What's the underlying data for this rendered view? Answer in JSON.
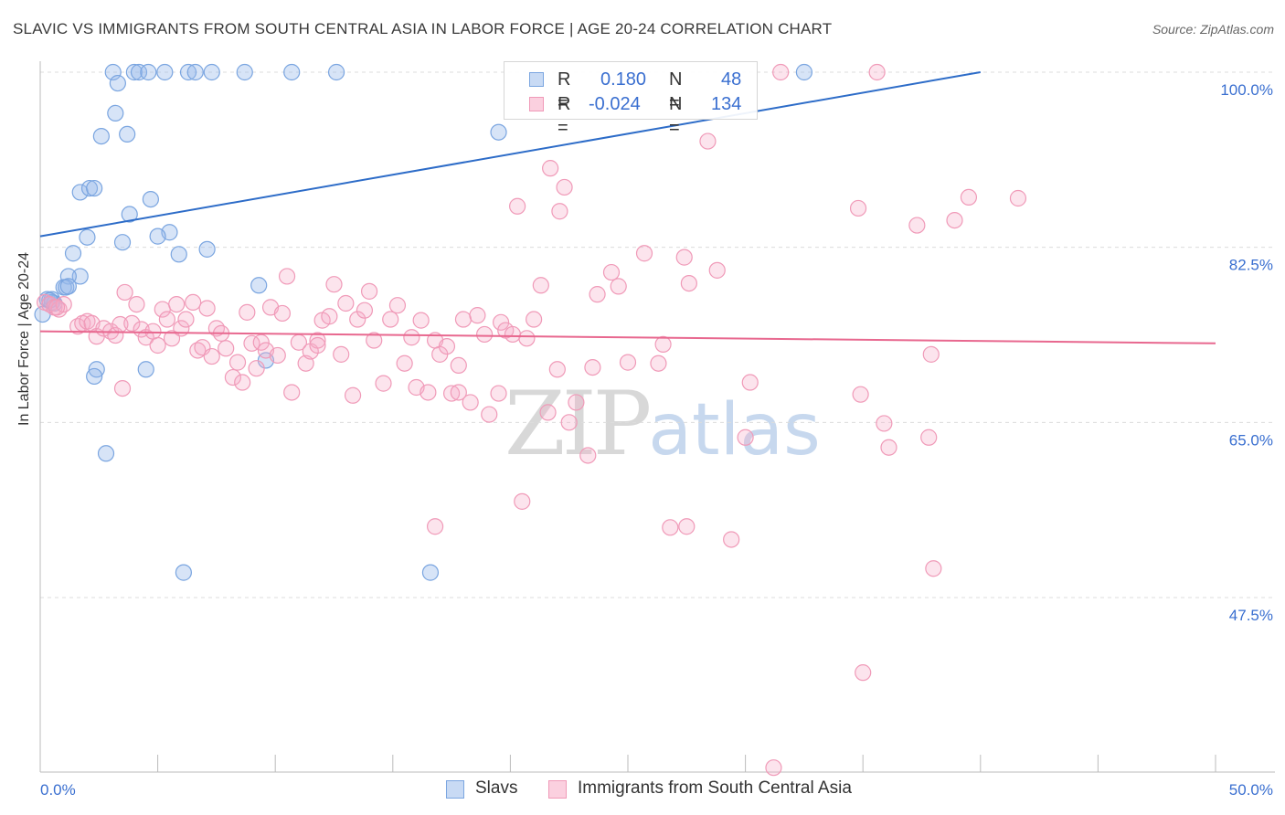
{
  "title": "SLAVIC VS IMMIGRANTS FROM SOUTH CENTRAL ASIA IN LABOR FORCE | AGE 20-24 CORRELATION CHART",
  "source": "Source: ZipAtlas.com",
  "watermark": {
    "zip": "ZIP",
    "atlas": "atlas"
  },
  "legend_top": {
    "rows": [
      {
        "r_label": "R =",
        "r_value": "0.180",
        "n_label": "N =",
        "n_value": "48"
      },
      {
        "r_label": "R =",
        "r_value": "-0.024",
        "n_label": "N =",
        "n_value": "134"
      }
    ]
  },
  "legend_bottom": [
    "Slavs",
    "Immigrants from South Central Asia"
  ],
  "chart_data": {
    "type": "scatter",
    "title": "SLAVIC VS IMMIGRANTS FROM SOUTH CENTRAL ASIA IN LABOR FORCE | AGE 20-24 CORRELATION CHART",
    "xlabel": "",
    "ylabel": "In Labor Force | Age 20-24",
    "xlim": [
      0,
      50
    ],
    "ylim": [
      29,
      101.5
    ],
    "x_tick_labels": [
      {
        "value": 0,
        "label": "0.0%"
      },
      {
        "value": 50,
        "label": "50.0%"
      }
    ],
    "y_tick_labels": [
      {
        "value": 100,
        "label": "100.0%"
      },
      {
        "value": 82.5,
        "label": "82.5%"
      },
      {
        "value": 65,
        "label": "65.0%"
      },
      {
        "value": 47.5,
        "label": "47.5%"
      }
    ],
    "grid": true,
    "colors": {
      "slavs": "#7aa5e0",
      "immigrants": "#f09ab8",
      "slavs_line": "#2d6cc8",
      "immigrants_line": "#e8688f",
      "tick_label": "#3a6fd0"
    },
    "series": [
      {
        "name": "Slavs",
        "trend": {
          "x0": 0,
          "y0": 83.6,
          "x1": 40.0,
          "y1": 100.0
        },
        "points": [
          [
            3.1,
            100
          ],
          [
            4.0,
            100
          ],
          [
            4.2,
            100
          ],
          [
            4.6,
            100
          ],
          [
            5.3,
            100
          ],
          [
            6.3,
            100
          ],
          [
            6.6,
            100
          ],
          [
            7.3,
            100
          ],
          [
            8.7,
            100
          ],
          [
            10.7,
            100
          ],
          [
            12.6,
            100
          ],
          [
            32.5,
            100
          ],
          [
            3.3,
            98.9
          ],
          [
            3.2,
            95.9
          ],
          [
            2.6,
            93.6
          ],
          [
            3.7,
            93.8
          ],
          [
            19.5,
            94.0
          ],
          [
            1.7,
            88.0
          ],
          [
            2.1,
            88.4
          ],
          [
            2.3,
            88.4
          ],
          [
            4.7,
            87.3
          ],
          [
            3.8,
            85.8
          ],
          [
            5.5,
            84.0
          ],
          [
            2.0,
            83.5
          ],
          [
            3.5,
            83.0
          ],
          [
            5.0,
            83.6
          ],
          [
            1.4,
            81.9
          ],
          [
            7.1,
            82.3
          ],
          [
            5.9,
            81.8
          ],
          [
            1.7,
            79.6
          ],
          [
            1.2,
            79.6
          ],
          [
            1.0,
            78.5
          ],
          [
            1.1,
            78.5
          ],
          [
            1.2,
            78.6
          ],
          [
            0.3,
            77.3
          ],
          [
            0.5,
            77.3
          ],
          [
            0.6,
            76.9
          ],
          [
            0.1,
            75.8
          ],
          [
            0.5,
            77.0
          ],
          [
            9.3,
            78.7
          ],
          [
            2.4,
            70.3
          ],
          [
            4.5,
            70.3
          ],
          [
            2.3,
            69.6
          ],
          [
            9.6,
            71.2
          ],
          [
            2.8,
            61.9
          ],
          [
            6.1,
            50.0
          ],
          [
            16.6,
            50.0
          ],
          [
            0.4,
            77.2
          ]
        ]
      },
      {
        "name": "Immigrants from South Central Asia",
        "trend": {
          "x0": 0,
          "y0": 74.1,
          "x1": 50,
          "y1": 72.9
        },
        "points": [
          [
            0.2,
            77.0
          ],
          [
            0.4,
            76.8
          ],
          [
            0.6,
            76.5
          ],
          [
            0.8,
            76.3
          ],
          [
            1.0,
            76.8
          ],
          [
            1.6,
            74.6
          ],
          [
            1.8,
            74.9
          ],
          [
            2.0,
            75.1
          ],
          [
            2.2,
            74.9
          ],
          [
            2.4,
            73.6
          ],
          [
            2.7,
            74.4
          ],
          [
            3.0,
            74.1
          ],
          [
            3.2,
            73.7
          ],
          [
            3.4,
            74.8
          ],
          [
            3.5,
            68.4
          ],
          [
            3.6,
            78.0
          ],
          [
            3.9,
            74.9
          ],
          [
            4.1,
            76.8
          ],
          [
            4.3,
            74.3
          ],
          [
            4.5,
            73.5
          ],
          [
            4.8,
            74.1
          ],
          [
            5.0,
            72.7
          ],
          [
            5.2,
            76.3
          ],
          [
            5.4,
            75.3
          ],
          [
            5.6,
            73.4
          ],
          [
            5.8,
            76.8
          ],
          [
            6.0,
            74.4
          ],
          [
            6.2,
            75.3
          ],
          [
            6.5,
            77.0
          ],
          [
            6.7,
            72.2
          ],
          [
            6.9,
            72.5
          ],
          [
            7.1,
            76.4
          ],
          [
            7.3,
            71.6
          ],
          [
            7.5,
            74.4
          ],
          [
            7.7,
            73.9
          ],
          [
            7.9,
            72.4
          ],
          [
            8.2,
            69.5
          ],
          [
            8.4,
            71.0
          ],
          [
            8.6,
            69.0
          ],
          [
            8.8,
            76.0
          ],
          [
            9.0,
            72.9
          ],
          [
            9.2,
            70.4
          ],
          [
            9.4,
            73.0
          ],
          [
            9.6,
            72.2
          ],
          [
            9.8,
            76.5
          ],
          [
            10.1,
            71.7
          ],
          [
            10.3,
            75.9
          ],
          [
            10.5,
            79.6
          ],
          [
            10.7,
            68.0
          ],
          [
            11.0,
            73.0
          ],
          [
            11.3,
            70.9
          ],
          [
            11.5,
            72.1
          ],
          [
            11.8,
            73.2
          ],
          [
            12.0,
            75.2
          ],
          [
            12.3,
            75.6
          ],
          [
            12.5,
            78.8
          ],
          [
            12.8,
            71.8
          ],
          [
            13.0,
            76.9
          ],
          [
            13.3,
            67.7
          ],
          [
            13.5,
            75.3
          ],
          [
            13.8,
            76.2
          ],
          [
            14.0,
            78.1
          ],
          [
            14.2,
            73.2
          ],
          [
            14.6,
            68.9
          ],
          [
            14.9,
            75.3
          ],
          [
            15.2,
            76.7
          ],
          [
            15.5,
            70.9
          ],
          [
            15.8,
            73.5
          ],
          [
            16.0,
            68.5
          ],
          [
            16.2,
            75.2
          ],
          [
            16.5,
            68.0
          ],
          [
            16.8,
            73.2
          ],
          [
            17.0,
            71.8
          ],
          [
            17.3,
            72.6
          ],
          [
            17.5,
            67.9
          ],
          [
            17.8,
            68.0
          ],
          [
            18.0,
            75.3
          ],
          [
            18.3,
            67.0
          ],
          [
            18.6,
            75.7
          ],
          [
            18.9,
            73.8
          ],
          [
            19.1,
            65.8
          ],
          [
            19.5,
            67.9
          ],
          [
            19.6,
            75.0
          ],
          [
            19.8,
            74.2
          ],
          [
            20.1,
            73.8
          ],
          [
            20.5,
            57.1
          ],
          [
            20.7,
            73.4
          ],
          [
            21.0,
            75.3
          ],
          [
            21.3,
            78.7
          ],
          [
            21.6,
            66.0
          ],
          [
            22.0,
            70.3
          ],
          [
            22.5,
            65.0
          ],
          [
            22.8,
            67.0
          ],
          [
            23.3,
            61.7
          ],
          [
            23.5,
            70.5
          ],
          [
            23.7,
            77.8
          ],
          [
            24.3,
            80.0
          ],
          [
            24.6,
            78.6
          ],
          [
            25.0,
            71.0
          ],
          [
            25.7,
            81.9
          ],
          [
            26.3,
            70.9
          ],
          [
            26.8,
            54.5
          ],
          [
            26.5,
            72.8
          ],
          [
            27.4,
            81.5
          ],
          [
            27.6,
            78.9
          ],
          [
            28.4,
            93.1
          ],
          [
            28.8,
            80.2
          ],
          [
            29.4,
            53.3
          ],
          [
            30.2,
            69.0
          ],
          [
            30.0,
            63.5
          ],
          [
            31.5,
            100
          ],
          [
            34.8,
            86.4
          ],
          [
            34.9,
            67.8
          ],
          [
            35.6,
            100
          ],
          [
            35.9,
            64.9
          ],
          [
            36.1,
            62.5
          ],
          [
            37.3,
            84.7
          ],
          [
            37.8,
            63.5
          ],
          [
            37.9,
            71.8
          ],
          [
            38.0,
            50.4
          ],
          [
            38.9,
            85.2
          ],
          [
            39.5,
            87.5
          ],
          [
            41.6,
            87.4
          ],
          [
            0.7,
            76.5
          ],
          [
            11.8,
            72.7
          ],
          [
            21.7,
            90.4
          ],
          [
            20.3,
            86.6
          ],
          [
            22.1,
            86.1
          ],
          [
            22.3,
            88.5
          ],
          [
            27.5,
            54.6
          ],
          [
            35.0,
            40.0
          ],
          [
            31.2,
            30.5
          ],
          [
            16.8,
            54.6
          ],
          [
            17.8,
            70.7
          ]
        ]
      }
    ]
  }
}
